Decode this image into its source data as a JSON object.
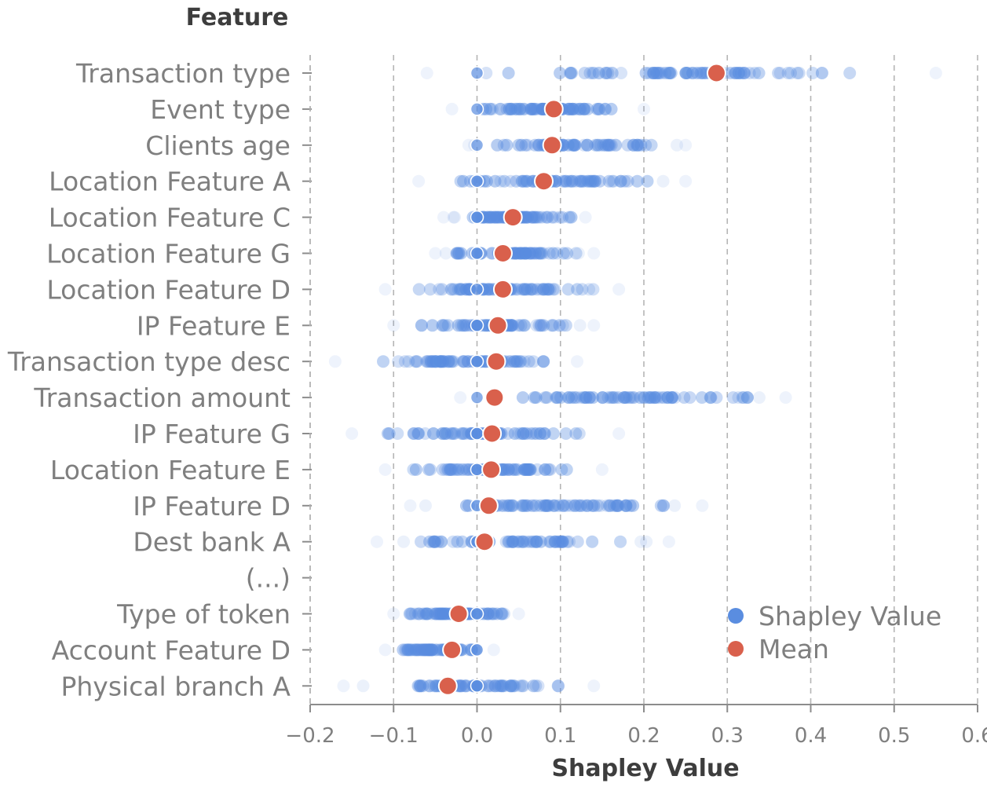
{
  "chart_data": {
    "type": "scatter",
    "title": "",
    "xlabel": "Shapley Value",
    "ylabel": "Feature",
    "xlim": [
      -0.2,
      0.6
    ],
    "xticks": [
      -0.2,
      -0.1,
      0.0,
      0.1,
      0.2,
      0.3,
      0.4,
      0.5,
      0.6
    ],
    "xtick_labels": [
      "−0.2",
      "−0.1",
      "0.0",
      "0.1",
      "0.2",
      "0.3",
      "0.4",
      "0.5",
      "0.6"
    ],
    "grid": "vertical dashed at x ticks",
    "legend_position": "bottom-right",
    "colors": {
      "shapley": "#5a8de0",
      "mean": "#d9604c",
      "axis": "#8c8c8c",
      "grid": "#b5b5b5"
    },
    "categories": [
      "Transaction type",
      "Event type",
      "Clients age",
      "Location Feature A",
      "Location Feature C",
      "Location Feature G",
      "Location Feature D",
      "IP Feature E",
      "Transaction type desc",
      "Transaction amount",
      "IP Feature G",
      "Location Feature E",
      "IP Feature D",
      "Dest bank A",
      "(...)",
      "Type of token",
      "Account Feature D",
      "Physical branch A"
    ],
    "series": [
      {
        "name": "Shapley Value",
        "ranges": [
          [
            -0.06,
            0.55
          ],
          [
            -0.03,
            0.2
          ],
          [
            -0.01,
            0.25
          ],
          [
            -0.07,
            0.25
          ],
          [
            -0.04,
            0.13
          ],
          [
            -0.05,
            0.14
          ],
          [
            -0.11,
            0.17
          ],
          [
            -0.1,
            0.14
          ],
          [
            -0.17,
            0.12
          ],
          [
            -0.02,
            0.37
          ],
          [
            -0.15,
            0.17
          ],
          [
            -0.11,
            0.15
          ],
          [
            -0.08,
            0.27
          ],
          [
            -0.12,
            0.23
          ],
          null,
          [
            -0.1,
            0.05
          ],
          [
            -0.11,
            0.02
          ],
          [
            -0.16,
            0.14
          ]
        ]
      },
      {
        "name": "Mean",
        "values": [
          0.287,
          0.092,
          0.09,
          0.08,
          0.043,
          0.031,
          0.031,
          0.025,
          0.023,
          0.021,
          0.018,
          0.017,
          0.014,
          0.009,
          null,
          -0.022,
          -0.03,
          -0.035
        ]
      }
    ]
  }
}
